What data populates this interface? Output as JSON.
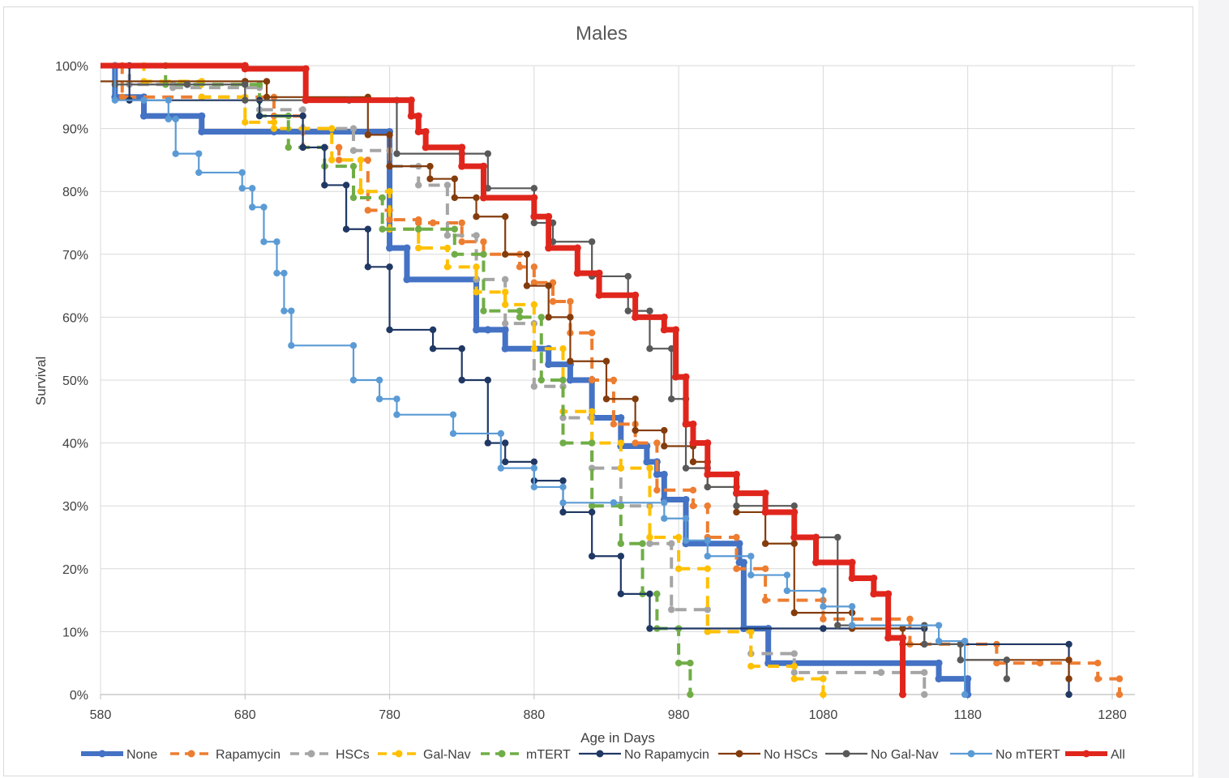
{
  "chart_data": {
    "type": "line",
    "title": "Males",
    "xlabel": "Age in Days",
    "ylabel": "Survival",
    "xlim": [
      580,
      1280
    ],
    "ylim": [
      0,
      1
    ],
    "x_ticks": [
      "580",
      "680",
      "780",
      "880",
      "980",
      "1080",
      "1180",
      "1280"
    ],
    "y_ticks": [
      "0%",
      "10%",
      "20%",
      "30%",
      "40%",
      "50%",
      "60%",
      "70%",
      "80%",
      "90%",
      "100%"
    ],
    "grid": true,
    "legend_position": "bottom",
    "series": [
      {
        "name": "None",
        "color": "#4472c4",
        "dash": "solid",
        "weight": "thick",
        "x": [
          580,
          590,
          610,
          650,
          700,
          780,
          792,
          840,
          848,
          860,
          890,
          905,
          920,
          940,
          958,
          965,
          970,
          985,
          1022,
          1025,
          1042,
          1160,
          1180
        ],
        "y": [
          1.0,
          0.95,
          0.92,
          0.895,
          0.895,
          0.71,
          0.66,
          0.58,
          0.58,
          0.55,
          0.525,
          0.5,
          0.44,
          0.395,
          0.37,
          0.35,
          0.31,
          0.24,
          0.21,
          0.105,
          0.05,
          0.025,
          0.0
        ]
      },
      {
        "name": "Rapamycin",
        "color": "#ed7d31",
        "dash": "dashed",
        "weight": "normal",
        "x": [
          580,
          595,
          650,
          700,
          720,
          745,
          765,
          780,
          800,
          810,
          830,
          845,
          870,
          880,
          893,
          905,
          920,
          935,
          950,
          965,
          990,
          1000,
          1020,
          1040,
          1080,
          1140,
          1200,
          1230,
          1270,
          1285
        ],
        "y": [
          1.0,
          0.95,
          0.95,
          0.92,
          0.87,
          0.85,
          0.77,
          0.755,
          0.75,
          0.75,
          0.72,
          0.7,
          0.68,
          0.655,
          0.625,
          0.575,
          0.5,
          0.43,
          0.4,
          0.325,
          0.3,
          0.25,
          0.2,
          0.15,
          0.12,
          0.08,
          0.05,
          0.05,
          0.025,
          0.0
        ]
      },
      {
        "name": "HSCs",
        "color": "#a5a5a5",
        "dash": "dashed",
        "weight": "normal",
        "x": [
          580,
          600,
          630,
          690,
          720,
          755,
          780,
          800,
          820,
          840,
          860,
          880,
          900,
          920,
          940,
          960,
          975,
          1000,
          1030,
          1060,
          1120,
          1150
        ],
        "y": [
          1.0,
          0.97,
          0.965,
          0.93,
          0.9,
          0.865,
          0.84,
          0.81,
          0.73,
          0.66,
          0.59,
          0.49,
          0.44,
          0.36,
          0.3,
          0.24,
          0.135,
          0.1,
          0.065,
          0.035,
          0.035,
          0.0
        ]
      },
      {
        "name": "Gal-Nav",
        "color": "#ffc000",
        "dash": "dashed",
        "weight": "normal",
        "x": [
          580,
          610,
          650,
          680,
          700,
          740,
          760,
          780,
          800,
          820,
          840,
          860,
          880,
          900,
          920,
          940,
          960,
          980,
          1000,
          1030,
          1060,
          1080
        ],
        "y": [
          1.0,
          0.975,
          0.95,
          0.91,
          0.9,
          0.85,
          0.8,
          0.74,
          0.71,
          0.68,
          0.64,
          0.62,
          0.55,
          0.45,
          0.4,
          0.36,
          0.25,
          0.2,
          0.1,
          0.045,
          0.025,
          0.0
        ]
      },
      {
        "name": "mTERT",
        "color": "#70ad47",
        "dash": "dashed",
        "weight": "normal",
        "x": [
          580,
          625,
          690,
          710,
          735,
          755,
          775,
          800,
          825,
          845,
          870,
          885,
          900,
          920,
          940,
          955,
          965,
          980,
          988
        ],
        "y": [
          1.0,
          0.97,
          0.92,
          0.87,
          0.84,
          0.79,
          0.74,
          0.74,
          0.7,
          0.61,
          0.6,
          0.5,
          0.4,
          0.3,
          0.24,
          0.16,
          0.105,
          0.05,
          0.0
        ]
      },
      {
        "name": "No Rapamycin",
        "color": "#203864",
        "dash": "solid",
        "weight": "normal",
        "x": [
          580,
          600,
          690,
          720,
          735,
          750,
          765,
          780,
          810,
          830,
          848,
          860,
          880,
          900,
          920,
          940,
          960,
          1080,
          1150,
          1250
        ],
        "y": [
          1.0,
          0.945,
          0.92,
          0.87,
          0.81,
          0.74,
          0.68,
          0.58,
          0.55,
          0.5,
          0.4,
          0.37,
          0.34,
          0.29,
          0.22,
          0.16,
          0.105,
          0.105,
          0.08,
          0.0
        ]
      },
      {
        "name": "No HSCs",
        "color": "#843c0c",
        "dash": "solid",
        "weight": "normal",
        "x": [
          580,
          680,
          695,
          765,
          780,
          808,
          825,
          840,
          860,
          875,
          890,
          905,
          930,
          950,
          970,
          990,
          1000,
          1020,
          1040,
          1060,
          1100,
          1135,
          1175,
          1250
        ],
        "y": [
          0.975,
          0.975,
          0.95,
          0.89,
          0.84,
          0.82,
          0.79,
          0.76,
          0.7,
          0.65,
          0.6,
          0.53,
          0.47,
          0.42,
          0.395,
          0.37,
          0.33,
          0.29,
          0.24,
          0.13,
          0.105,
          0.08,
          0.055,
          0.025
        ]
      },
      {
        "name": "No Gal-Nav",
        "color": "#595959",
        "dash": "solid",
        "weight": "normal",
        "x": [
          580,
          590,
          640,
          680,
          752,
          785,
          830,
          848,
          880,
          893,
          920,
          945,
          960,
          975,
          985,
          1000,
          1020,
          1060,
          1090,
          1150,
          1175,
          1207
        ],
        "y": [
          1.0,
          0.97,
          0.97,
          0.945,
          0.945,
          0.86,
          0.86,
          0.805,
          0.75,
          0.72,
          0.665,
          0.61,
          0.55,
          0.47,
          0.36,
          0.33,
          0.3,
          0.25,
          0.11,
          0.08,
          0.055,
          0.025
        ]
      },
      {
        "name": "No mTERT",
        "color": "#5b9bd5",
        "dash": "solid",
        "weight": "normal",
        "x": [
          580,
          590,
          610,
          627,
          632,
          648,
          678,
          685,
          693,
          702,
          707,
          712,
          755,
          773,
          785,
          824,
          857,
          880,
          900,
          935,
          970,
          985,
          1000,
          1030,
          1055,
          1080,
          1100,
          1160,
          1178
        ],
        "y": [
          1.0,
          0.945,
          0.945,
          0.915,
          0.86,
          0.83,
          0.805,
          0.775,
          0.72,
          0.67,
          0.61,
          0.555,
          0.5,
          0.47,
          0.445,
          0.415,
          0.36,
          0.33,
          0.305,
          0.305,
          0.28,
          0.245,
          0.22,
          0.19,
          0.165,
          0.14,
          0.11,
          0.085,
          0.0
        ]
      },
      {
        "name": "All",
        "color": "#e0261c",
        "dash": "solid",
        "weight": "thick",
        "x": [
          580,
          680,
          722,
          795,
          800,
          805,
          830,
          845,
          880,
          890,
          910,
          925,
          950,
          970,
          978,
          985,
          990,
          1000,
          1020,
          1040,
          1060,
          1075,
          1100,
          1115,
          1125,
          1135
        ],
        "y": [
          1.0,
          0.995,
          0.945,
          0.92,
          0.895,
          0.87,
          0.84,
          0.79,
          0.76,
          0.71,
          0.67,
          0.635,
          0.6,
          0.58,
          0.505,
          0.43,
          0.4,
          0.35,
          0.32,
          0.29,
          0.25,
          0.21,
          0.185,
          0.16,
          0.09,
          0.0
        ]
      }
    ]
  }
}
